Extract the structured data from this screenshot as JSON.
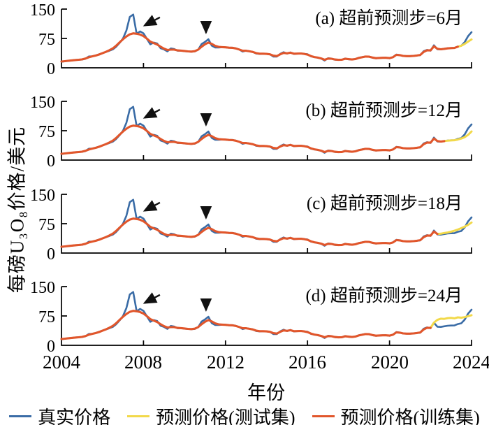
{
  "figure": {
    "y_axis_label": "每磅U₃O₈价格/美元",
    "x_axis_label": "年份",
    "x_ticks": [
      "2004",
      "2008",
      "2012",
      "2016",
      "2020",
      "2024"
    ],
    "y_ticks": [
      "0",
      "75",
      "150"
    ]
  },
  "legend": [
    {
      "label": "真实价格",
      "color": "#3a6ca6"
    },
    {
      "label": "预测价格(测试集)",
      "color": "#f2d94a"
    },
    {
      "label": "预测价格(训练集)",
      "color": "#e1562b"
    }
  ],
  "annotation_color": "#111111",
  "axis_color": "#000000",
  "chart_data": {
    "type": "line",
    "xlabel": "年份",
    "ylabel": "每磅U₃O₈价格/美元",
    "xlim": [
      2004,
      2024
    ],
    "ylim": [
      0,
      150
    ],
    "x_tick_values": [
      2004,
      2008,
      2012,
      2016,
      2020,
      2024
    ],
    "y_tick_values": [
      0,
      75,
      150
    ],
    "grid": false,
    "legend_position": "bottom-center",
    "x_years": {
      "start": 2004,
      "end": 2024,
      "points": 121,
      "note": "bimonthly samples"
    },
    "series_actual": [
      15.5,
      16.8,
      18,
      19,
      20,
      20.5,
      21,
      23,
      29,
      29.5,
      31.5,
      34.5,
      37.5,
      40.5,
      43.5,
      47,
      54,
      63.5,
      75,
      95,
      130,
      136,
      87,
      93,
      88,
      74,
      60,
      64.5,
      62,
      50,
      47,
      42,
      49.5,
      48,
      43.5,
      44,
      42.5,
      41.8,
      41,
      41.7,
      46.5,
      60.8,
      66,
      73,
      56.5,
      51.8,
      52,
      52.5,
      52.3,
      51.2,
      51.5,
      49.8,
      46.8,
      41.5,
      43.8,
      42.3,
      40.5,
      36.5,
      35.5,
      36,
      35.5,
      34.5,
      28.8,
      28.5,
      35.5,
      39.8,
      36.5,
      39.3,
      35.3,
      36.3,
      36.8,
      35.8,
      34.7,
      29.3,
      27.3,
      25.8,
      23.8,
      18.5,
      24.5,
      23.5,
      20.8,
      20.3,
      20.3,
      23.8,
      21.8,
      21,
      22.5,
      25.5,
      27.3,
      29,
      28.8,
      25.8,
      24.3,
      25.3,
      25.5,
      25.8,
      24.3,
      27.3,
      34,
      32.5,
      30.2,
      29.8,
      29.8,
      30.5,
      31.3,
      32.3,
      42.5,
      45.8,
      43.8,
      57.5,
      47.5,
      47,
      48.5,
      50,
      50.5,
      50.7,
      54.3,
      56.3,
      65.5,
      81,
      91
    ],
    "series_train_pred": [
      16,
      17,
      18,
      19,
      19.8,
      20.6,
      21.5,
      23.5,
      27,
      29.3,
      31.3,
      34,
      37.3,
      40.8,
      44.8,
      49.5,
      56.5,
      65,
      73,
      80,
      85.5,
      88,
      87,
      85,
      81,
      74.5,
      67,
      63,
      59.5,
      54,
      49,
      45.5,
      46.5,
      46.5,
      44.5,
      44,
      43,
      42,
      41.5,
      42.5,
      46.5,
      54,
      60,
      64.5,
      61,
      56,
      53.5,
      52.8,
      52.4,
      51.5,
      51,
      49.5,
      46.8,
      43.5,
      43.5,
      42.2,
      40.5,
      37.5,
      36,
      36,
      35.5,
      34.5,
      31,
      30,
      34.5,
      38,
      37,
      38.5,
      36,
      36.3,
      36.6,
      35.6,
      33.8,
      30,
      27.5,
      26,
      24,
      20.5,
      23.5,
      23.2,
      21.2,
      20.4,
      20.5,
      23,
      22.2,
      21.3,
      22.4,
      25.2,
      27,
      28.7,
      28.4,
      26.2,
      24.6,
      25.2,
      25.5,
      25.6,
      24.8,
      27,
      33,
      32.3,
      30.4,
      29.9,
      29.8,
      30.4,
      31.4,
      32.8,
      40.5,
      44.8,
      44.5,
      55,
      48.5,
      47.3,
      48.4,
      49.7,
      50.4,
      50.8,
      54,
      56.4,
      64.5,
      78,
      86
    ],
    "panels": [
      {
        "id": "a",
        "label": "(a) 超前预测步=6月",
        "lead_months": 6,
        "test_start_index": 116,
        "test_values": [
          54,
          56.5,
          61,
          67,
          72.5
        ]
      },
      {
        "id": "b",
        "label": "(b) 超前预测步=12月",
        "lead_months": 12,
        "test_start_index": 112,
        "test_values": [
          48.4,
          49.7,
          50.2,
          50.8,
          52.5,
          55,
          58.5,
          64.5,
          73
        ]
      },
      {
        "id": "c",
        "label": "(c) 超前预测步=18月",
        "lead_months": 18,
        "test_start_index": 110,
        "test_values": [
          48.5,
          49.5,
          51,
          52.5,
          54.5,
          57,
          60,
          63.5,
          67.5,
          72,
          78
        ]
      },
      {
        "id": "d",
        "label": "(d) 超前预测步=24月",
        "lead_months": 24,
        "test_start_index": 108,
        "test_values": [
          44.5,
          58,
          65,
          68,
          67.5,
          69.5,
          70,
          69,
          71.5,
          70.5,
          72,
          74.5,
          77
        ]
      }
    ],
    "annotations": {
      "slant_arrow": {
        "tail": [
          2008.8,
          129
        ],
        "tip": [
          2008.05,
          108
        ]
      },
      "vertical_arrow": {
        "tail": [
          2011.05,
          116
        ],
        "tip": [
          2011.05,
          90
        ]
      }
    }
  }
}
